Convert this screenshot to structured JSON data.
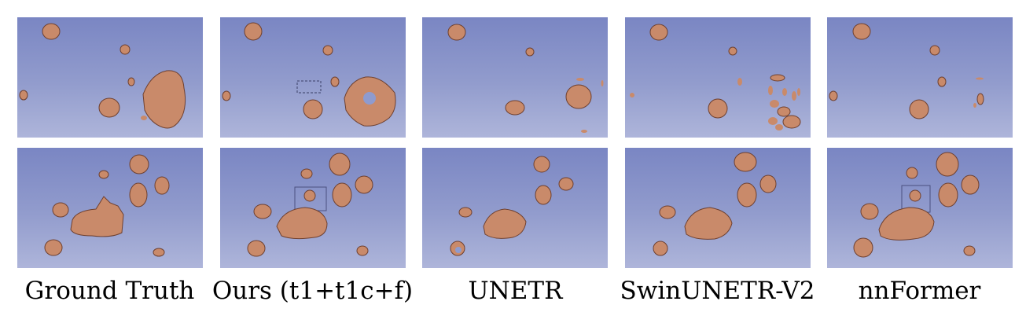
{
  "columns": [
    {
      "caption": "Ground Truth"
    },
    {
      "caption": "Ours (t1+t1c+f)"
    },
    {
      "caption": "UNETR"
    },
    {
      "caption": "SwinUNETR-V2"
    },
    {
      "caption": "nnFormer"
    }
  ],
  "colors": {
    "background_top": "#7a86c3",
    "background_bottom": "#aeb5da",
    "tumor": "#c98a6a",
    "tumor_dark": "#8e5a42"
  }
}
